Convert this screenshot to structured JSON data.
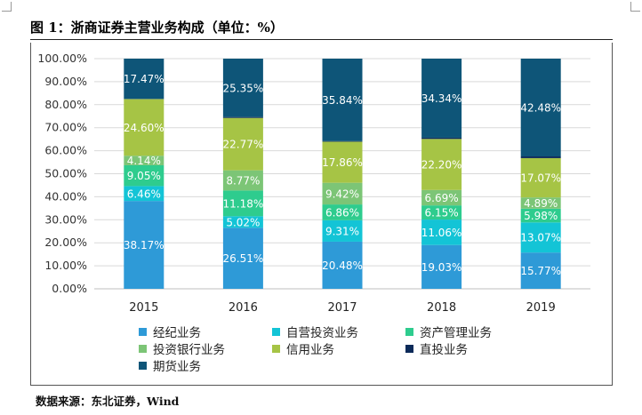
{
  "title": "图 1：浙商证券主营业务构成（单位：%）",
  "source": "数据来源：东北证券，Wind",
  "chart_data": {
    "type": "bar",
    "stacked": true,
    "categories": [
      "2015",
      "2016",
      "2017",
      "2018",
      "2019"
    ],
    "series": [
      {
        "name": "经纪业务",
        "color": "#2E9AD7",
        "values": [
          38.17,
          26.51,
          20.48,
          19.03,
          15.77
        ],
        "labels": [
          "38.17%",
          "26.51%",
          "20.48%",
          "19.03%",
          "15.77%"
        ]
      },
      {
        "name": "自营投资业务",
        "color": "#13C4D6",
        "values": [
          6.46,
          5.02,
          9.31,
          11.06,
          13.07
        ],
        "labels": [
          "6.46%",
          "5.02%",
          "9.31%",
          "11.06%",
          "13.07%"
        ]
      },
      {
        "name": "资产管理业务",
        "color": "#2ECC8E",
        "values": [
          9.05,
          11.18,
          6.86,
          6.15,
          5.98
        ],
        "labels": [
          "9.05%",
          "11.18%",
          "6.86%",
          "6.15%",
          "5.98%"
        ]
      },
      {
        "name": "投资银行业务",
        "color": "#7CC576",
        "values": [
          4.14,
          8.77,
          9.42,
          6.69,
          4.89
        ],
        "labels": [
          "4.14%",
          "8.77%",
          "9.42%",
          "6.69%",
          "4.89%"
        ]
      },
      {
        "name": "信用业务",
        "color": "#A6C445",
        "values": [
          24.6,
          22.77,
          17.86,
          22.2,
          17.07
        ],
        "labels": [
          "24.60%",
          "22.77%",
          "17.86%",
          "22.20%",
          "17.07%"
        ]
      },
      {
        "name": "直投业务",
        "color": "#0B2A59",
        "values": [
          0.11,
          0.4,
          0.23,
          0.53,
          0.74
        ],
        "labels": [
          "",
          "",
          "",
          "",
          ""
        ]
      },
      {
        "name": "期货业务",
        "color": "#0E5578",
        "values": [
          17.47,
          25.35,
          35.84,
          34.34,
          42.48
        ],
        "labels": [
          "17.47%",
          "25.35%",
          "35.84%",
          "34.34%",
          "42.48%"
        ]
      }
    ],
    "yticks": [
      "0.00%",
      "10.00%",
      "20.00%",
      "30.00%",
      "40.00%",
      "50.00%",
      "60.00%",
      "70.00%",
      "80.00%",
      "90.00%",
      "100.00%"
    ],
    "ylim": [
      0,
      100
    ],
    "grid": true,
    "legend_position": "bottom",
    "legend_rows": [
      [
        "经纪业务",
        "自营投资业务",
        "资产管理业务"
      ],
      [
        "投资银行业务",
        "信用业务",
        "直投业务"
      ],
      [
        "期货业务"
      ]
    ]
  }
}
